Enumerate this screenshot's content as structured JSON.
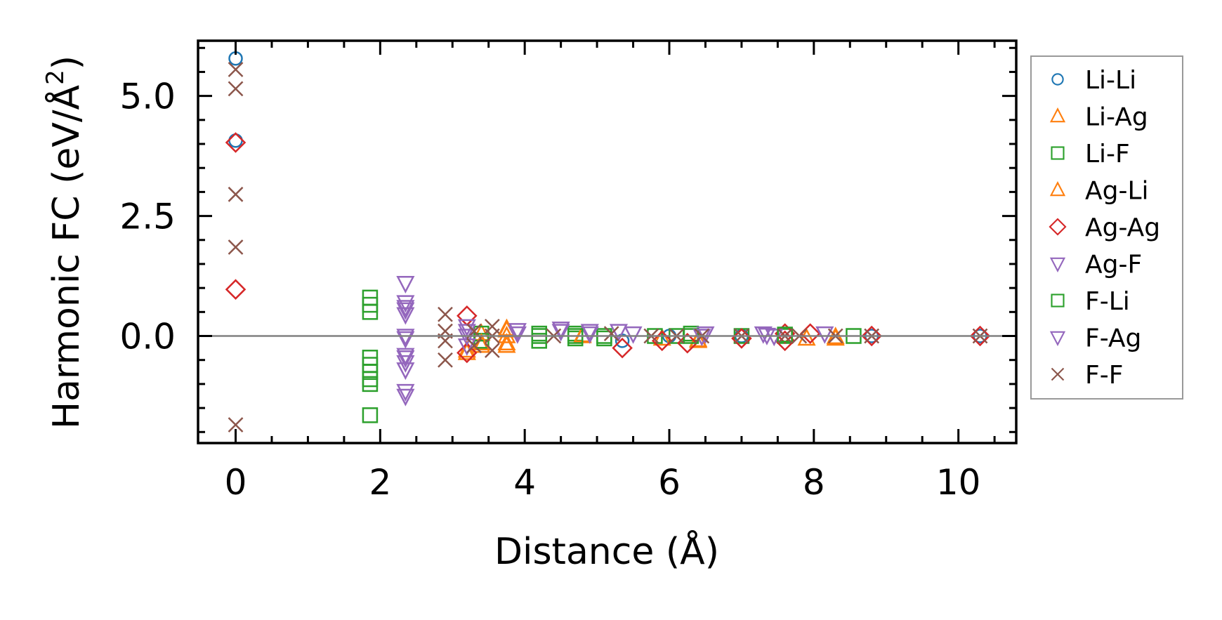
{
  "chart_data": {
    "type": "scatter",
    "title": "",
    "xlabel": "Distance (Å)",
    "ylabel": "Harmonic FC (eV/Å²)",
    "ylabel_parts": {
      "main": "Harmonic FC (eV/Å",
      "sup": "2",
      "end": ")"
    },
    "xlim": [
      -0.52,
      10.8
    ],
    "ylim": [
      -2.23,
      6.15
    ],
    "xticks": [
      0,
      2,
      4,
      6,
      8,
      10
    ],
    "xtick_labels": [
      "0",
      "2",
      "4",
      "6",
      "8",
      "10"
    ],
    "yticks": [
      0,
      2.5,
      5
    ],
    "ytick_labels": [
      "0.0",
      "2.5",
      "5.0"
    ],
    "grid": false,
    "zero_line": 0,
    "legend_position": "outside-right",
    "series": [
      {
        "name": "Li-Li",
        "marker": "circle",
        "color": "#1f77b4",
        "points": [
          [
            0,
            5.78
          ],
          [
            0,
            4.07
          ],
          [
            5.35,
            -0.1
          ],
          [
            6.0,
            0
          ],
          [
            7.0,
            0
          ],
          [
            8.8,
            0
          ],
          [
            10.3,
            0
          ]
        ]
      },
      {
        "name": "Li-Ag",
        "marker": "triangle-up",
        "color": "#ff7f0e",
        "points": [
          [
            3.2,
            -0.35
          ],
          [
            3.4,
            -0.2
          ],
          [
            3.4,
            0.05
          ],
          [
            3.75,
            0.12
          ],
          [
            3.75,
            -0.2
          ],
          [
            3.75,
            0
          ],
          [
            4.8,
            0
          ],
          [
            5.9,
            -0.05
          ],
          [
            6.4,
            -0.1
          ],
          [
            7.9,
            -0.05
          ],
          [
            8.3,
            -0.05
          ]
        ]
      },
      {
        "name": "Li-F",
        "marker": "square",
        "color": "#2ca02c",
        "points": [
          [
            1.86,
            0.8
          ],
          [
            1.86,
            0.65
          ],
          [
            1.86,
            0.5
          ],
          [
            1.86,
            -0.45
          ],
          [
            1.86,
            -0.6
          ],
          [
            1.86,
            -0.75
          ],
          [
            1.86,
            -0.9
          ],
          [
            1.86,
            -1.0
          ],
          [
            1.86,
            -1.65
          ],
          [
            3.4,
            0.05
          ],
          [
            3.4,
            -0.1
          ],
          [
            4.2,
            0
          ],
          [
            4.2,
            -0.1
          ],
          [
            4.7,
            0.05
          ],
          [
            4.7,
            -0.05
          ],
          [
            5.1,
            0
          ],
          [
            5.8,
            0
          ],
          [
            6.1,
            0
          ],
          [
            6.3,
            0.05
          ],
          [
            7.0,
            0
          ],
          [
            7.6,
            0
          ],
          [
            8.55,
            0
          ]
        ]
      },
      {
        "name": "Ag-Li",
        "marker": "triangle-up",
        "color": "#ff7f0e",
        "points": [
          [
            3.2,
            -0.3
          ],
          [
            3.4,
            -0.15
          ],
          [
            3.75,
            0.15
          ],
          [
            3.75,
            -0.15
          ],
          [
            4.8,
            0.02
          ],
          [
            6.4,
            -0.08
          ],
          [
            8.3,
            -0.02
          ]
        ]
      },
      {
        "name": "Ag-Ag",
        "marker": "diamond",
        "color": "#d62728",
        "points": [
          [
            0,
            4.03
          ],
          [
            0,
            0.97
          ],
          [
            3.2,
            0.42
          ],
          [
            3.2,
            -0.35
          ],
          [
            5.35,
            -0.25
          ],
          [
            5.9,
            -0.1
          ],
          [
            6.25,
            -0.15
          ],
          [
            7.0,
            -0.05
          ],
          [
            7.6,
            0.05
          ],
          [
            7.6,
            -0.1
          ],
          [
            7.95,
            0.05
          ],
          [
            8.8,
            0
          ],
          [
            10.3,
            0
          ]
        ]
      },
      {
        "name": "Ag-F",
        "marker": "triangle-down",
        "color": "#9467bd",
        "points": [
          [
            2.35,
            1.1
          ],
          [
            2.35,
            0.7
          ],
          [
            2.35,
            0.55
          ],
          [
            2.35,
            0.45
          ],
          [
            2.35,
            0
          ],
          [
            2.35,
            -0.05
          ],
          [
            2.35,
            -0.4
          ],
          [
            2.35,
            -0.55
          ],
          [
            2.35,
            -0.7
          ],
          [
            2.35,
            -1.15
          ],
          [
            2.35,
            -1.25
          ],
          [
            3.2,
            0.2
          ],
          [
            3.2,
            0
          ],
          [
            3.2,
            -0.2
          ],
          [
            3.9,
            0.12
          ],
          [
            4.5,
            0.15
          ],
          [
            4.9,
            0.05
          ],
          [
            5.3,
            0.1
          ],
          [
            6.5,
            0.05
          ],
          [
            7.3,
            0.05
          ],
          [
            7.45,
            0
          ],
          [
            8.15,
            0.05
          ]
        ]
      },
      {
        "name": "F-Li",
        "marker": "square",
        "color": "#2ca02c",
        "points": [
          [
            4.2,
            0.05
          ],
          [
            4.7,
            0
          ],
          [
            5.1,
            -0.05
          ],
          [
            6.3,
            0
          ],
          [
            7.6,
            0.03
          ]
        ]
      },
      {
        "name": "F-Ag",
        "marker": "triangle-down",
        "color": "#9467bd",
        "points": [
          [
            2.35,
            0.6
          ],
          [
            2.35,
            -0.45
          ],
          [
            3.2,
            0.1
          ],
          [
            3.9,
            0.05
          ],
          [
            4.5,
            0.1
          ],
          [
            4.9,
            0.1
          ],
          [
            5.5,
            0.05
          ],
          [
            6.45,
            0
          ],
          [
            7.35,
            0.02
          ]
        ]
      },
      {
        "name": "F-F",
        "marker": "x",
        "color": "#8c564b",
        "points": [
          [
            0,
            5.55
          ],
          [
            0,
            5.15
          ],
          [
            0,
            2.95
          ],
          [
            0,
            1.85
          ],
          [
            0,
            -1.85
          ],
          [
            2.9,
            0.45
          ],
          [
            2.9,
            -0.5
          ],
          [
            2.9,
            0.1
          ],
          [
            2.9,
            -0.1
          ],
          [
            3.3,
            0.1
          ],
          [
            3.3,
            -0.2
          ],
          [
            3.55,
            0.2
          ],
          [
            3.55,
            -0.3
          ],
          [
            3.55,
            0
          ],
          [
            4.4,
            0
          ],
          [
            5.2,
            0.05
          ],
          [
            5.75,
            0
          ],
          [
            6.1,
            0
          ],
          [
            6.45,
            0
          ],
          [
            7.0,
            0
          ],
          [
            7.6,
            0
          ],
          [
            7.8,
            0
          ],
          [
            8.3,
            0
          ],
          [
            8.8,
            0
          ],
          [
            10.3,
            0
          ]
        ]
      }
    ]
  }
}
